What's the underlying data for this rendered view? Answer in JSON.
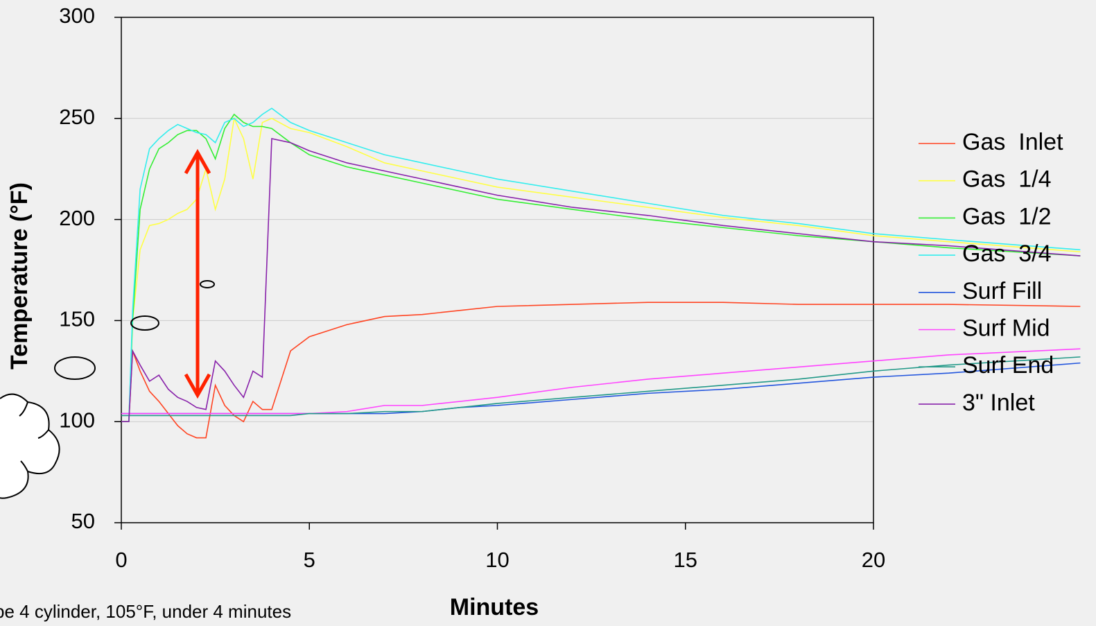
{
  "chart_data": {
    "type": "line",
    "x_label": "Minutes",
    "y_label": "Temperature (°F)",
    "annotation": "pe 4 cylinder, 105°F, under 4 minutes",
    "x": [
      0,
      0.2,
      0.3,
      0.5,
      0.75,
      1,
      1.25,
      1.5,
      1.75,
      2,
      2.25,
      2.5,
      2.75,
      3,
      3.25,
      3.5,
      3.75,
      4,
      4.5,
      5,
      6,
      7,
      8,
      9,
      10,
      12,
      14,
      16,
      18,
      20,
      22,
      25.5
    ],
    "series": [
      {
        "name": "Gas  Inlet",
        "color": "#ff4422",
        "values": [
          100,
          100,
          135,
          125,
          115,
          110,
          104,
          98,
          94,
          92,
          92,
          118,
          108,
          103,
          100,
          110,
          106,
          106,
          135,
          142,
          148,
          152,
          153,
          155,
          157,
          158,
          159,
          159,
          158,
          158,
          158,
          157
        ]
      },
      {
        "name": "Gas  1/4",
        "color": "#ffff44",
        "values": [
          100,
          100,
          150,
          185,
          197,
          198,
          200,
          203,
          205,
          210,
          225,
          205,
          220,
          250,
          240,
          220,
          248,
          250,
          245,
          243,
          236,
          228,
          224,
          220,
          216,
          211,
          206,
          201,
          197,
          192,
          189,
          184
        ]
      },
      {
        "name": "Gas  1/2",
        "color": "#33ee33",
        "values": [
          100,
          100,
          150,
          205,
          225,
          235,
          238,
          242,
          244,
          244,
          240,
          230,
          245,
          252,
          248,
          246,
          246,
          245,
          238,
          232,
          226,
          222,
          218,
          214,
          210,
          205,
          200,
          196,
          192,
          189,
          186,
          182
        ]
      },
      {
        "name": "Gas  3/4",
        "color": "#33eeee",
        "values": [
          100,
          100,
          155,
          215,
          235,
          240,
          244,
          247,
          245,
          243,
          242,
          238,
          248,
          250,
          246,
          248,
          252,
          255,
          248,
          244,
          238,
          232,
          228,
          224,
          220,
          214,
          208,
          202,
          198,
          193,
          190,
          185
        ]
      },
      {
        "name": "Surf Fill",
        "color": "#2255dd",
        "values": [
          104,
          104,
          104,
          104,
          104,
          104,
          104,
          104,
          104,
          104,
          104,
          104,
          104,
          104,
          104,
          104,
          104,
          104,
          104,
          104,
          104,
          104,
          105,
          107,
          108,
          111,
          114,
          116,
          119,
          122,
          124,
          129
        ]
      },
      {
        "name": "Surf Mid",
        "color": "#ff44ff",
        "values": [
          104,
          104,
          104,
          104,
          104,
          104,
          104,
          104,
          104,
          104,
          104,
          104,
          104,
          104,
          104,
          104,
          104,
          104,
          104,
          104,
          105,
          108,
          108,
          110,
          112,
          117,
          121,
          124,
          127,
          130,
          133,
          136
        ]
      },
      {
        "name": "Surf End",
        "color": "#229988",
        "values": [
          103,
          103,
          103,
          103,
          103,
          103,
          103,
          103,
          103,
          103,
          103,
          103,
          103,
          103,
          103,
          103,
          103,
          103,
          103,
          104,
          104,
          105,
          105,
          107,
          109,
          112,
          115,
          118,
          121,
          125,
          128,
          132
        ]
      },
      {
        "name": "3\" Inlet",
        "color": "#8822aa",
        "values": [
          100,
          100,
          135,
          128,
          120,
          123,
          116,
          112,
          110,
          107,
          106,
          130,
          125,
          118,
          112,
          125,
          122,
          240,
          238,
          234,
          228,
          224,
          220,
          216,
          212,
          206,
          202,
          197,
          193,
          189,
          187,
          182
        ]
      }
    ],
    "xlim": [
      0,
      20
    ],
    "xticks": [
      0,
      5,
      10,
      15,
      20
    ],
    "ylim": [
      50,
      300
    ],
    "yticks": [
      50,
      100,
      150,
      200,
      250,
      300
    ],
    "grid": true,
    "legend": "right"
  }
}
